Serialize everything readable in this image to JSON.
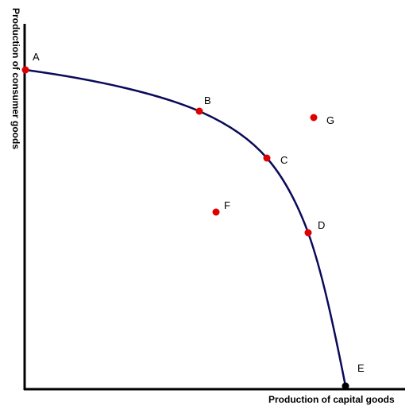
{
  "diagram": {
    "x_axis_label": "Production of capital goods",
    "y_axis_label": "Production of consumer goods",
    "curve_color": "#0a0a5a",
    "axis_color": "#000000",
    "points": [
      {
        "id": "A",
        "label": "A",
        "on_curve": true,
        "color": "#e00000"
      },
      {
        "id": "B",
        "label": "B",
        "on_curve": true,
        "color": "#e00000"
      },
      {
        "id": "C",
        "label": "C",
        "on_curve": true,
        "color": "#e00000"
      },
      {
        "id": "D",
        "label": "D",
        "on_curve": true,
        "color": "#e00000"
      },
      {
        "id": "E",
        "label": "E",
        "on_curve": true,
        "color": "#000000"
      },
      {
        "id": "F",
        "label": "F",
        "on_curve": false,
        "color": "#e00000"
      },
      {
        "id": "G",
        "label": "G",
        "on_curve": false,
        "color": "#e00000"
      }
    ]
  }
}
